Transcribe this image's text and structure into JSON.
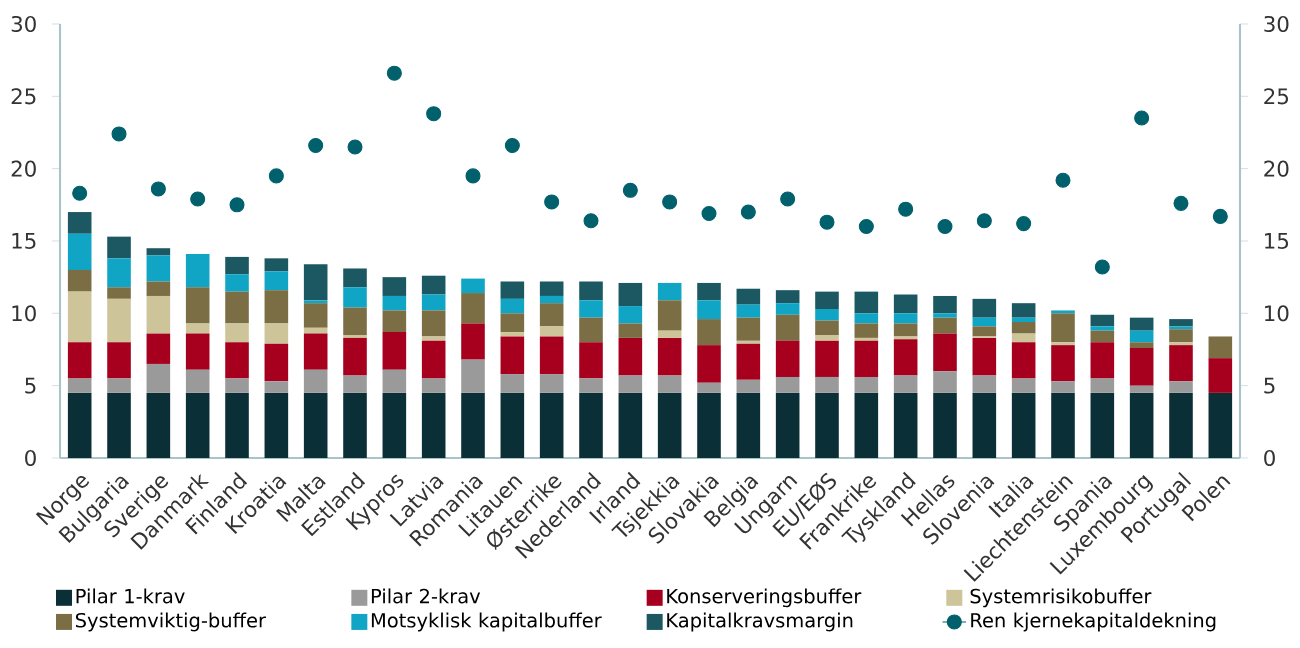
{
  "chart_data": {
    "type": "bar",
    "stacked": true,
    "categories": [
      "Norge",
      "Bulgaria",
      "Sverige",
      "Danmark",
      "Finland",
      "Kroatia",
      "Malta",
      "Estland",
      "Kypros",
      "Latvia",
      "Romania",
      "Litauen",
      "Østerrike",
      "Nederland",
      "Irland",
      "Tsjekkia",
      "Slovakia",
      "Belgia",
      "Ungarn",
      "EU/EØS",
      "Frankrike",
      "Tyskland",
      "Hellas",
      "Slovenia",
      "Italia",
      "Liechtenstein",
      "Spania",
      "Luxembourg",
      "Portugal",
      "Polen"
    ],
    "series": [
      {
        "name": "Pilar 1-krav",
        "color": "#0b2f37",
        "values": [
          4.5,
          4.5,
          4.5,
          4.5,
          4.5,
          4.5,
          4.5,
          4.5,
          4.5,
          4.5,
          4.5,
          4.5,
          4.5,
          4.5,
          4.5,
          4.5,
          4.5,
          4.5,
          4.5,
          4.5,
          4.5,
          4.5,
          4.5,
          4.5,
          4.5,
          4.5,
          4.5,
          4.5,
          4.5,
          4.5
        ]
      },
      {
        "name": "Pilar 2-krav",
        "color": "#9a9a9a",
        "values": [
          1.0,
          1.0,
          2.0,
          1.6,
          1.0,
          0.8,
          1.6,
          1.2,
          1.6,
          1.0,
          2.3,
          1.3,
          1.3,
          1.0,
          1.2,
          1.2,
          0.7,
          0.9,
          1.1,
          1.1,
          1.1,
          1.2,
          1.5,
          1.2,
          1.0,
          0.8,
          1.0,
          0.5,
          0.8,
          0
        ]
      },
      {
        "name": "Konserveringsbuffer",
        "color": "#a6001e",
        "values": [
          2.5,
          2.5,
          2.1,
          2.5,
          2.5,
          2.6,
          2.5,
          2.6,
          2.6,
          2.6,
          2.5,
          2.6,
          2.6,
          2.5,
          2.6,
          2.6,
          2.6,
          2.5,
          2.5,
          2.5,
          2.5,
          2.5,
          2.6,
          2.6,
          2.5,
          2.5,
          2.5,
          2.6,
          2.5,
          2.4
        ]
      },
      {
        "name": "Systemrisikobuffer",
        "color": "#cdc49a",
        "values": [
          3.5,
          3.0,
          2.6,
          0.7,
          1.3,
          1.4,
          0.4,
          0.2,
          0,
          0.3,
          0,
          0.3,
          0.7,
          0,
          0,
          0.5,
          0,
          0.2,
          0,
          0.4,
          0.2,
          0.2,
          0,
          0.1,
          0.6,
          0.2,
          0,
          0,
          0.2,
          0
        ]
      },
      {
        "name": "Systemviktig-buffer",
        "color": "#7b6e45",
        "values": [
          1.5,
          0.8,
          1.0,
          2.5,
          2.2,
          2.3,
          1.7,
          1.9,
          1.5,
          1.8,
          2.1,
          1.3,
          1.6,
          1.7,
          1.0,
          2.1,
          1.8,
          1.6,
          1.8,
          1.0,
          1.0,
          0.9,
          1.1,
          0.7,
          0.8,
          2.0,
          0.8,
          0.4,
          0.9,
          1.5
        ]
      },
      {
        "name": "Motsyklisk kapitalbuffer",
        "color": "#10a5c5",
        "values": [
          2.5,
          2.0,
          1.8,
          2.3,
          1.2,
          1.3,
          0.2,
          1.4,
          1.0,
          1.1,
          1.0,
          1.0,
          0.5,
          1.2,
          1.2,
          1.2,
          1.3,
          0.9,
          0.8,
          0.8,
          0.7,
          0.7,
          0.3,
          0.6,
          0.3,
          0.2,
          0.3,
          0.8,
          0.2,
          0
        ]
      },
      {
        "name": "Kapitalkravsmargin",
        "color": "#1b5862",
        "values": [
          1.5,
          1.5,
          0.5,
          0,
          1.2,
          0.9,
          2.5,
          1.3,
          1.3,
          1.3,
          0,
          1.2,
          1.0,
          1.3,
          1.6,
          0,
          1.2,
          1.1,
          0.9,
          1.2,
          1.5,
          1.3,
          1.2,
          1.3,
          1.0,
          0,
          0.8,
          0.9,
          0.5,
          0
        ]
      },
      {
        "name": "Ren kjernekapitaldekning",
        "type": "scatter",
        "color": "#00616d",
        "values": [
          18.3,
          22.4,
          18.6,
          17.9,
          17.5,
          19.5,
          21.6,
          21.5,
          26.6,
          23.8,
          19.5,
          21.6,
          17.7,
          16.4,
          18.5,
          17.7,
          16.9,
          17.0,
          17.9,
          16.3,
          16.0,
          17.2,
          16.0,
          16.4,
          16.2,
          19.2,
          13.2,
          23.5,
          17.6,
          16.7
        ]
      }
    ],
    "marker": "circle",
    "legend": "bottom",
    "ylim": [
      0,
      30
    ],
    "yticks": [
      0,
      5,
      10,
      15,
      20,
      25,
      30
    ],
    "y2lim": [
      0,
      30
    ],
    "y2ticks": [
      0,
      5,
      10,
      15,
      20,
      25,
      30
    ]
  }
}
